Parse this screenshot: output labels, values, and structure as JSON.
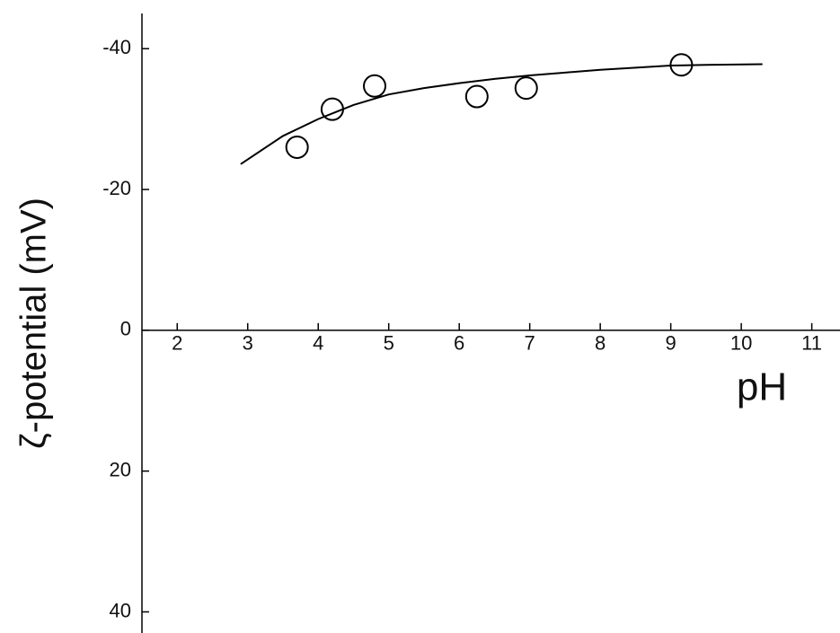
{
  "chart_data": {
    "type": "scatter",
    "ylabel": "ζ-potential (mV)",
    "xlabel": "pH",
    "xlim": [
      1.5,
      11.4
    ],
    "xticks": [
      2,
      3,
      4,
      5,
      6,
      7,
      8,
      9,
      10,
      11
    ],
    "ylim": [
      -45,
      43
    ],
    "yticks": [
      -40,
      -20,
      0,
      20,
      40
    ],
    "y_reversed": true,
    "series": [
      {
        "color": "#000000",
        "marker": "open-circle",
        "x": [
          3.7,
          4.2,
          4.8,
          6.25,
          6.95,
          9.15
        ],
        "values": [
          -26,
          -31.4,
          -34.7,
          -33.2,
          -34.4,
          -37.7
        ]
      },
      {
        "color": "#000000",
        "style": "line",
        "x": [
          2.9,
          3.5,
          4,
          4.5,
          5,
          5.5,
          6,
          6.5,
          7,
          7.5,
          8,
          8.5,
          9,
          9.5,
          10.3
        ],
        "values": [
          -23.6,
          -27.6,
          -30,
          -32,
          -33.5,
          -34.4,
          -35.1,
          -35.7,
          -36.2,
          -36.6,
          -37,
          -37.3,
          -37.6,
          -37.7,
          -37.8
        ]
      }
    ]
  }
}
